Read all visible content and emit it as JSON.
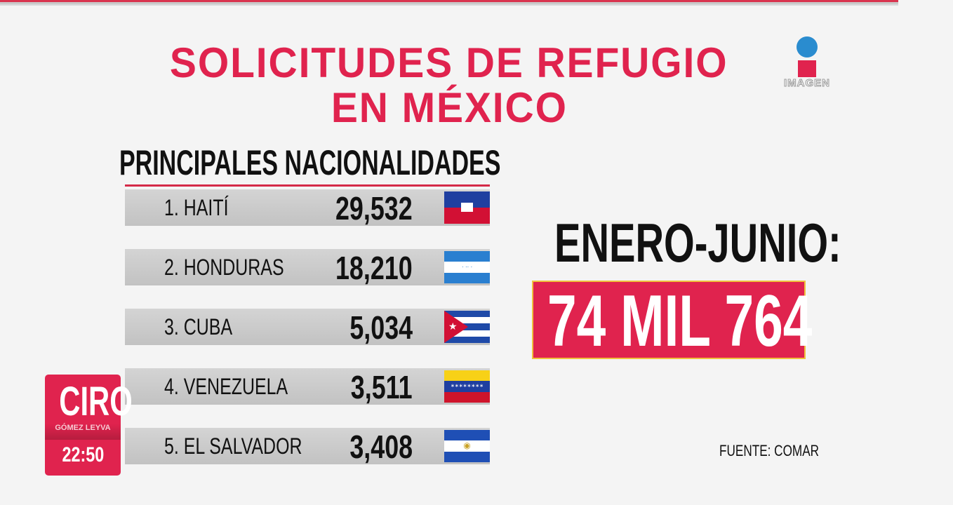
{
  "title_line1": "SOLICITUDES DE REFUGIO",
  "title_line2": "EN MÉXICO",
  "heading": "PRINCIPALES NACIONALIDADES",
  "period_label": "ENERO-JUNIO:",
  "total": "74 MIL 764",
  "source": "FUENTE: COMAR",
  "logo": {
    "text": "IMAGEN",
    "circle_color": "#2a8ccf",
    "square_color": "#e0234e"
  },
  "show": {
    "name": "CIRO",
    "subtitle": "GÓMEZ LEYVA",
    "time": "22:50"
  },
  "colors": {
    "accent": "#e0234e",
    "row_bg": "#c8c8c8",
    "text": "#111111"
  },
  "chart_data": {
    "type": "table",
    "columns": [
      "rank_country",
      "solicitudes",
      "flag"
    ],
    "rows": [
      {
        "label": "1. HAITÍ",
        "value": "29,532",
        "flag": "haiti-flag"
      },
      {
        "label": "2. HONDURAS",
        "value": "18,210",
        "flag": "honduras-flag"
      },
      {
        "label": "3. CUBA",
        "value": "5,034",
        "flag": "cuba-flag"
      },
      {
        "label": "4. VENEZUELA",
        "value": "3,511",
        "flag": "venezuela-flag"
      },
      {
        "label": "5. EL SALVADOR",
        "value": "3,408",
        "flag": "el-salvador-flag"
      }
    ]
  }
}
